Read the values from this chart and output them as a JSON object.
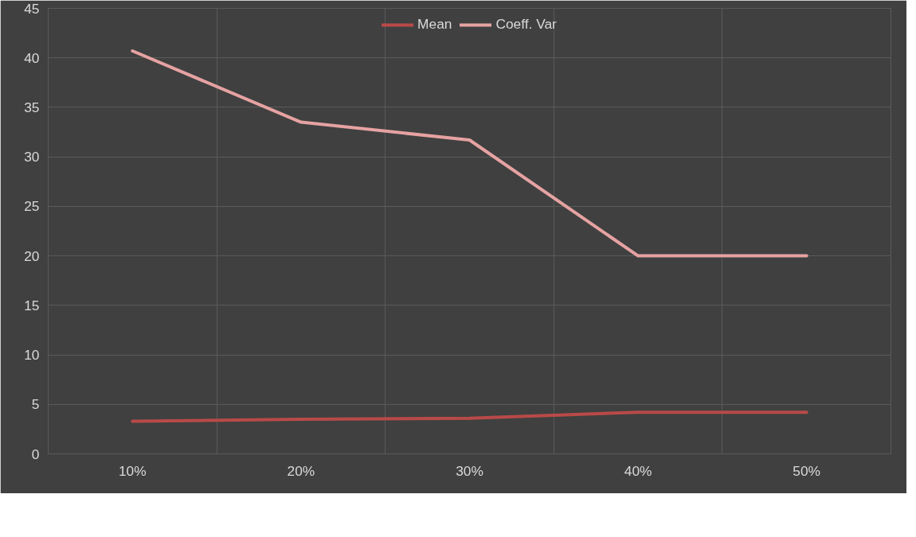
{
  "chart_data": {
    "type": "line",
    "categories": [
      "10%",
      "20%",
      "30%",
      "40%",
      "50%"
    ],
    "series": [
      {
        "name": "Mean",
        "color": "#b94a48",
        "values": [
          3.3,
          3.5,
          3.6,
          4.2,
          4.2
        ]
      },
      {
        "name": "Coeff. Var",
        "color": "#e6a2a2",
        "values": [
          40.7,
          33.5,
          31.7,
          20,
          20
        ]
      }
    ],
    "ylim": [
      0,
      45
    ],
    "yticks": [
      0,
      5,
      10,
      15,
      20,
      25,
      30,
      35,
      40,
      45
    ],
    "grid": true,
    "legend": "top",
    "marker": "none",
    "line_style": "solid"
  }
}
